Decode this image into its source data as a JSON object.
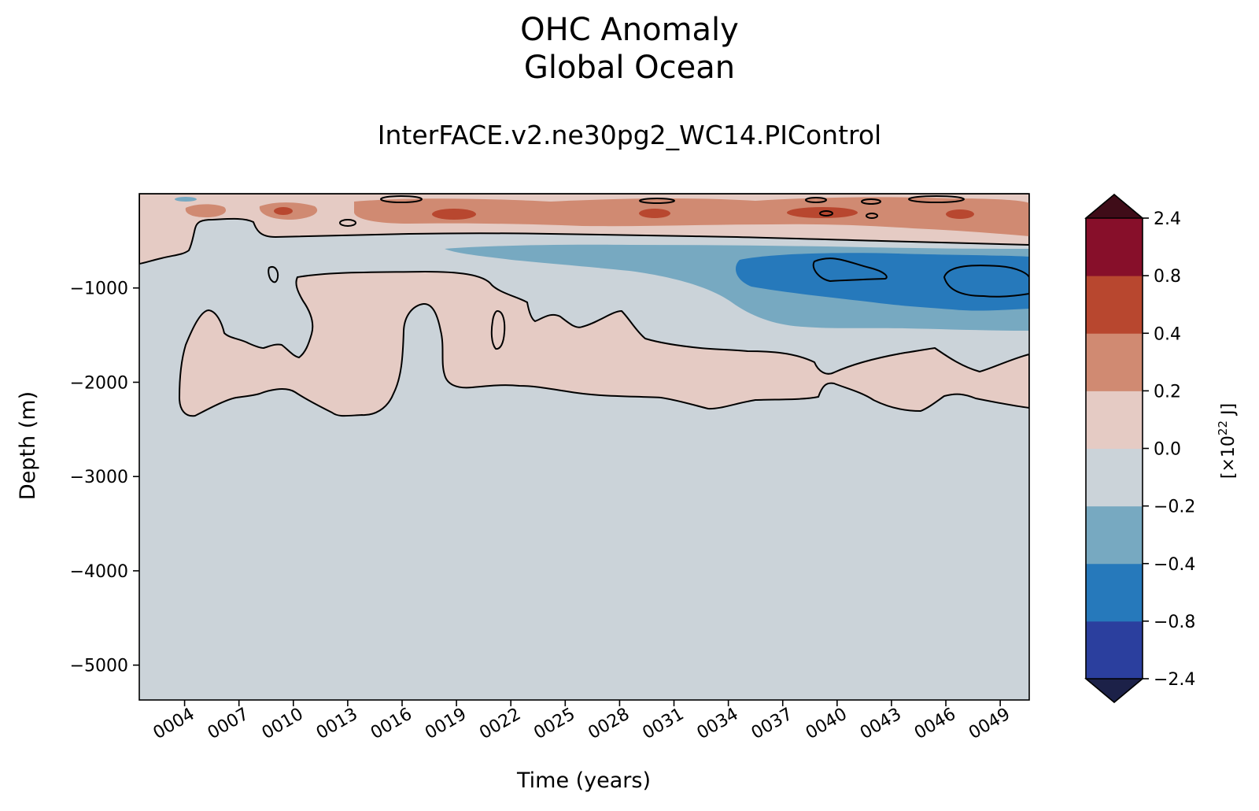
{
  "chart_data": {
    "type": "heatmap",
    "title": "OHC Anomaly",
    "title_line2": "Global Ocean",
    "subtitle": "InterFACE.v2.ne30pg2_WC14.PIControl",
    "xlabel": "Time (years)",
    "ylabel": "Depth (m)",
    "x_tick_labels": [
      "0004",
      "0007",
      "0010",
      "0013",
      "0016",
      "0019",
      "0022",
      "0025",
      "0028",
      "0031",
      "0034",
      "0037",
      "0040",
      "0043",
      "0046",
      "0049"
    ],
    "x_ticks": [
      4,
      7,
      10,
      13,
      16,
      19,
      22,
      25,
      28,
      31,
      34,
      37,
      40,
      43,
      46,
      49
    ],
    "xlim": [
      1.5,
      50.6
    ],
    "y_ticks": [
      -1000,
      -2000,
      -3000,
      -4000,
      -5000
    ],
    "y_tick_labels": [
      "−1000",
      "−2000",
      "−3000",
      "−4000",
      "−5000"
    ],
    "ylim": [
      -5370,
      0
    ],
    "colorbar": {
      "label": "[×10²² J]",
      "label_base": "[×10",
      "label_exp": "22",
      "label_end": " J]",
      "levels": [
        -2.4,
        -0.8,
        -0.4,
        -0.2,
        0.0,
        0.2,
        0.4,
        0.8,
        2.4
      ],
      "level_labels": [
        "−2.4",
        "−0.8",
        "−0.4",
        "−0.2",
        "0.0",
        "0.2",
        "0.4",
        "0.8",
        "2.4"
      ],
      "colors": [
        "#2b3f9e",
        "#2679bb",
        "#77a9c1",
        "#cbd3d9",
        "#e5cbc4",
        "#d08a72",
        "#b8472f",
        "#870f2a"
      ],
      "under_color": "#1c2148",
      "over_color": "#3f0c18"
    },
    "regions": [
      {
        "name": "background-near-zero-negative",
        "range": [
          -0.2,
          0.0
        ]
      },
      {
        "name": "surface-warm-layer",
        "range": [
          0.0,
          0.2
        ],
        "depth_range": [
          0,
          -700
        ]
      },
      {
        "name": "surface-warm-patches",
        "range": [
          0.2,
          0.8
        ],
        "depth_range": [
          0,
          -300
        ]
      },
      {
        "name": "mid-depth-warm-band",
        "range": [
          0.0,
          0.2
        ],
        "depth_range": [
          -900,
          -2400
        ]
      },
      {
        "name": "intermediate-cool-band",
        "range": [
          -0.4,
          -0.2
        ],
        "years": [
          19.5,
          50.6
        ],
        "depth_range": [
          -550,
          -1600
        ]
      },
      {
        "name": "intermediate-cold-core",
        "range": [
          -0.8,
          -0.4
        ],
        "years": [
          33.5,
          50.6
        ],
        "depth_range": [
          -650,
          -1300
        ]
      }
    ]
  }
}
